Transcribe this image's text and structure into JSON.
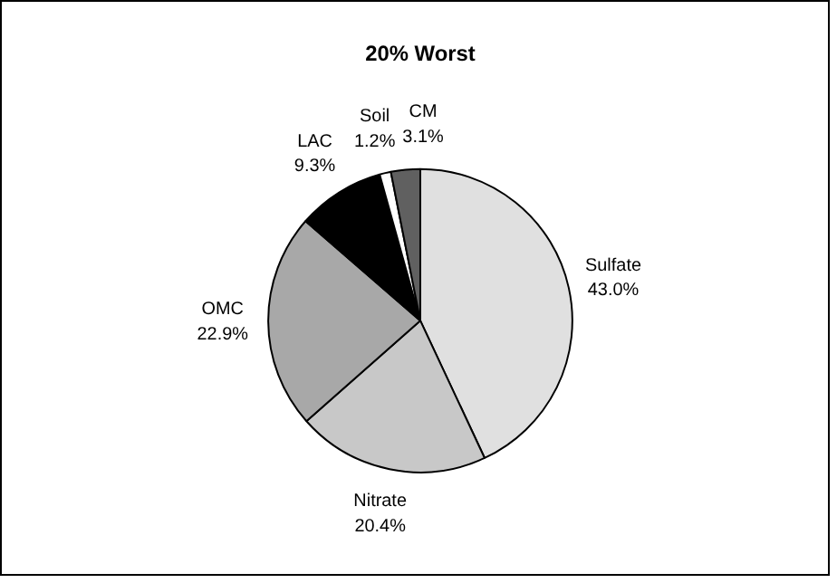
{
  "chart_data": {
    "type": "pie",
    "title": "20% Worst",
    "categories": [
      "Sulfate",
      "Nitrate",
      "OMC",
      "LAC",
      "Soil",
      "CM"
    ],
    "values": [
      43.0,
      20.4,
      22.9,
      9.3,
      1.2,
      3.1
    ],
    "value_labels": [
      "43.0%",
      "20.4%",
      "22.9%",
      "9.3%",
      "1.2%",
      "3.1%"
    ],
    "colors": [
      "#e0e0e0",
      "#c8c8c8",
      "#a8a8a8",
      "#000000",
      "#ffffff",
      "#606060"
    ],
    "legend": false
  }
}
